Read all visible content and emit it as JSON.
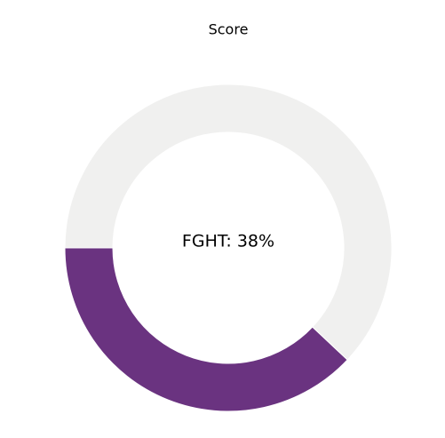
{
  "chart_data": {
    "type": "donut",
    "title": "Score",
    "center_label": "FGHT: 38%",
    "values": [
      38,
      62
    ],
    "colors": [
      "#6a3380",
      "#f0f0ef"
    ],
    "startangle": 180,
    "counterclock": true
  }
}
